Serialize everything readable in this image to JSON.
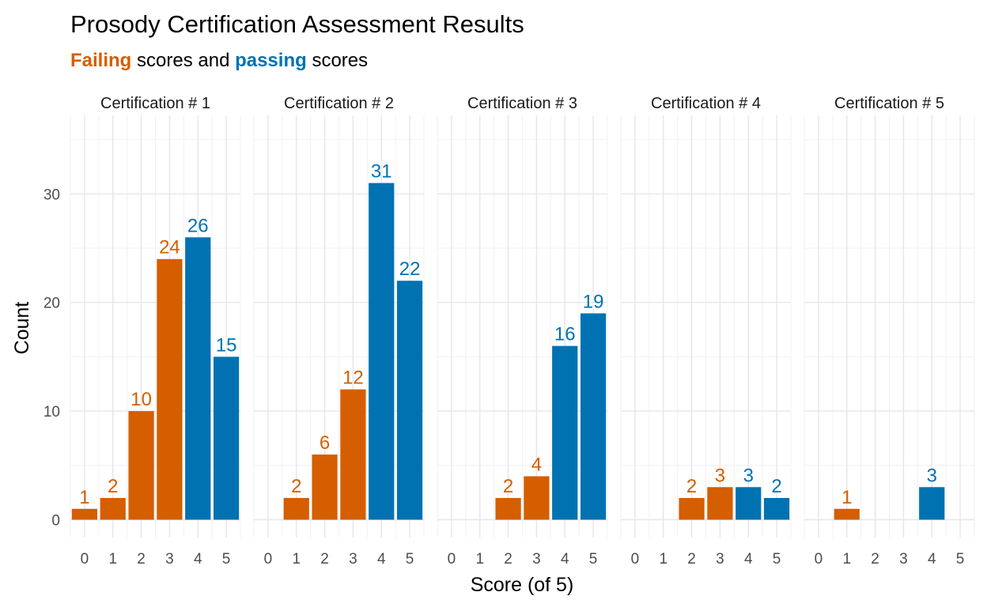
{
  "chart_data": {
    "type": "bar",
    "title": "Prosody Certification Assessment Results",
    "subtitle": {
      "word1": "Failing",
      "mid": " scores and ",
      "word2": "passing",
      "end": " scores"
    },
    "xlabel": "Score (of 5)",
    "ylabel": "Count",
    "x_ticks": [
      "0",
      "1",
      "2",
      "3",
      "4",
      "5"
    ],
    "y_ticks": [
      0,
      10,
      20,
      30
    ],
    "ylim": [
      -1.5,
      36
    ],
    "grid": true,
    "colors": {
      "failing": "#D55E00",
      "passing": "#0072B2"
    },
    "pass_threshold_score": 4,
    "facets": [
      {
        "label": "Certification # 1",
        "bars": [
          {
            "x": 0,
            "y": 1
          },
          {
            "x": 1,
            "y": 2
          },
          {
            "x": 2,
            "y": 10
          },
          {
            "x": 3,
            "y": 24
          },
          {
            "x": 4,
            "y": 26
          },
          {
            "x": 5,
            "y": 15
          }
        ]
      },
      {
        "label": "Certification # 2",
        "bars": [
          {
            "x": 1,
            "y": 2
          },
          {
            "x": 2,
            "y": 6
          },
          {
            "x": 3,
            "y": 12
          },
          {
            "x": 4,
            "y": 31
          },
          {
            "x": 5,
            "y": 22
          }
        ]
      },
      {
        "label": "Certification # 3",
        "bars": [
          {
            "x": 2,
            "y": 2
          },
          {
            "x": 3,
            "y": 4
          },
          {
            "x": 4,
            "y": 16
          },
          {
            "x": 5,
            "y": 19
          }
        ]
      },
      {
        "label": "Certification # 4",
        "bars": [
          {
            "x": 2,
            "y": 2
          },
          {
            "x": 3,
            "y": 3
          },
          {
            "x": 4,
            "y": 3
          },
          {
            "x": 5,
            "y": 2
          }
        ]
      },
      {
        "label": "Certification # 5",
        "bars": [
          {
            "x": 1,
            "y": 1
          },
          {
            "x": 4,
            "y": 3
          }
        ]
      }
    ]
  }
}
